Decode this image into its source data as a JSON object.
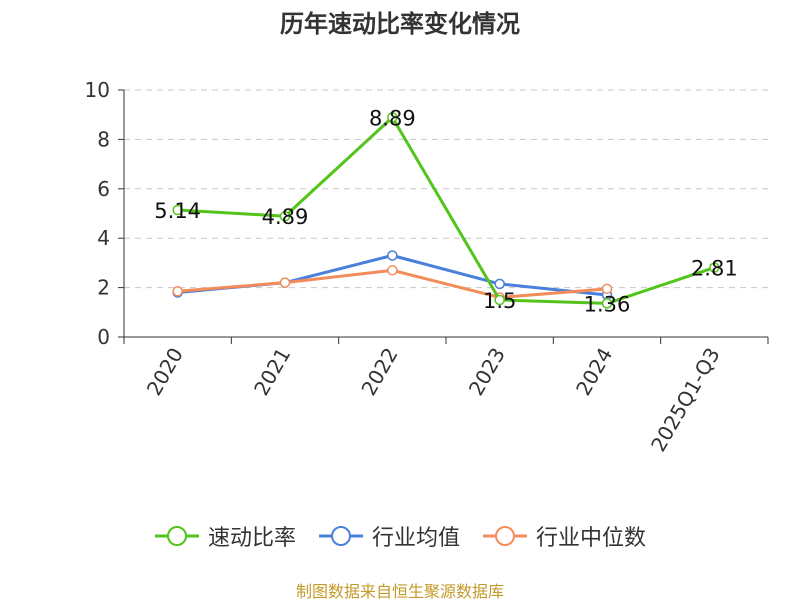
{
  "chart_data": {
    "type": "line",
    "title": "历年速动比率变化情况",
    "categories": [
      "2020",
      "2021",
      "2022",
      "2023",
      "2024",
      "2025Q1-Q3"
    ],
    "ylim": [
      0,
      10
    ],
    "yticks": [
      0,
      2,
      4,
      6,
      8,
      10
    ],
    "grid": true,
    "legend": "bottom",
    "series": [
      {
        "name": "速动比率",
        "color": "#52c41a",
        "values": [
          5.14,
          4.89,
          8.89,
          1.5,
          1.36,
          2.81
        ],
        "labels": [
          "5.14",
          "4.89",
          "8.89",
          "1.5",
          "1.36",
          "2.81"
        ]
      },
      {
        "name": "行业均值",
        "color": "#4a7fdb",
        "values": [
          1.8,
          2.2,
          3.3,
          2.15,
          1.7,
          null
        ]
      },
      {
        "name": "行业中位数",
        "color": "#f28c5b",
        "values": [
          1.85,
          2.2,
          2.7,
          1.6,
          1.95,
          null
        ]
      }
    ]
  },
  "footer": "制图数据来自恒生聚源数据库"
}
